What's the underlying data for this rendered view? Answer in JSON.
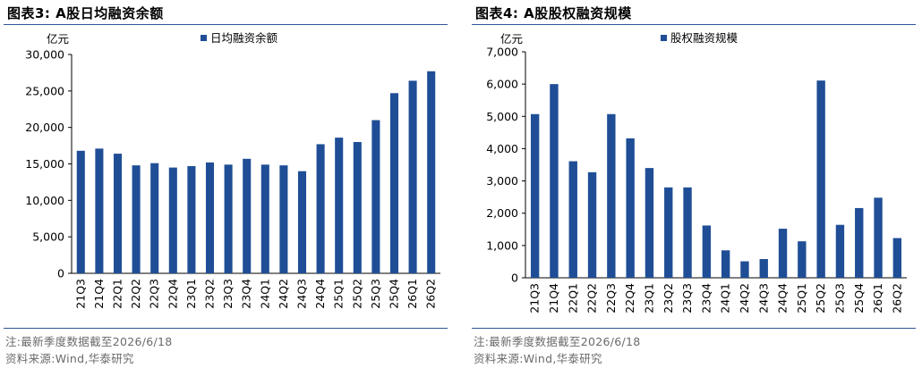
{
  "colors": {
    "bar": "#1f4e96",
    "rule": "#2f5597",
    "note": "#6a6a6a"
  },
  "charts": [
    {
      "title": "图表3:  A股日均融资余额",
      "note": "注:最新季度数据截至2026/6/18",
      "source": "资料来源:Wind,华泰研究"
    },
    {
      "title": "图表4:  A股股权融资规模",
      "note": "注:最新季度数据截至2026/6/18",
      "source": "资料来源:Wind,华泰研究"
    }
  ],
  "chart_data": [
    {
      "type": "bar",
      "ylabel": "亿元",
      "ylim": [
        0,
        30000
      ],
      "yticks": [
        0,
        5000,
        10000,
        15000,
        20000,
        25000,
        30000
      ],
      "ytick_labels": [
        "0",
        "5,000",
        "10,000",
        "15,000",
        "20,000",
        "25,000",
        "30,000"
      ],
      "legend_position": "top-center",
      "grid": false,
      "categories": [
        "21Q3",
        "21Q4",
        "22Q1",
        "22Q2",
        "22Q3",
        "22Q4",
        "23Q1",
        "23Q2",
        "23Q3",
        "23Q4",
        "24Q1",
        "24Q2",
        "24Q3",
        "24Q4",
        "25Q1",
        "25Q2",
        "25Q3",
        "25Q4",
        "26Q1",
        "26Q2"
      ],
      "series": [
        {
          "name": "日均融资余额",
          "values": [
            16800,
            17100,
            16400,
            14800,
            15100,
            14500,
            14700,
            15200,
            14900,
            15700,
            14900,
            14800,
            14000,
            17700,
            18600,
            18000,
            21000,
            24700,
            26400,
            27700
          ]
        }
      ]
    },
    {
      "type": "bar",
      "ylabel": "亿元",
      "ylim": [
        0,
        7000
      ],
      "yticks": [
        0,
        1000,
        2000,
        3000,
        4000,
        5000,
        6000,
        7000
      ],
      "ytick_labels": [
        "0",
        "1,000",
        "2,000",
        "3,000",
        "4,000",
        "5,000",
        "6,000",
        "7,000"
      ],
      "legend_position": "top-center",
      "grid": false,
      "categories": [
        "21Q3",
        "21Q4",
        "22Q1",
        "22Q2",
        "22Q3",
        "22Q4",
        "23Q1",
        "23Q2",
        "23Q3",
        "23Q4",
        "24Q1",
        "24Q2",
        "24Q3",
        "24Q4",
        "25Q1",
        "25Q2",
        "25Q3",
        "25Q4",
        "26Q1",
        "26Q2"
      ],
      "series": [
        {
          "name": "股权融资规模",
          "values": [
            5070,
            6000,
            3610,
            3270,
            5070,
            4320,
            3400,
            2800,
            2800,
            1620,
            850,
            510,
            580,
            1520,
            1130,
            6110,
            1640,
            2160,
            2480,
            1230
          ]
        }
      ]
    }
  ]
}
